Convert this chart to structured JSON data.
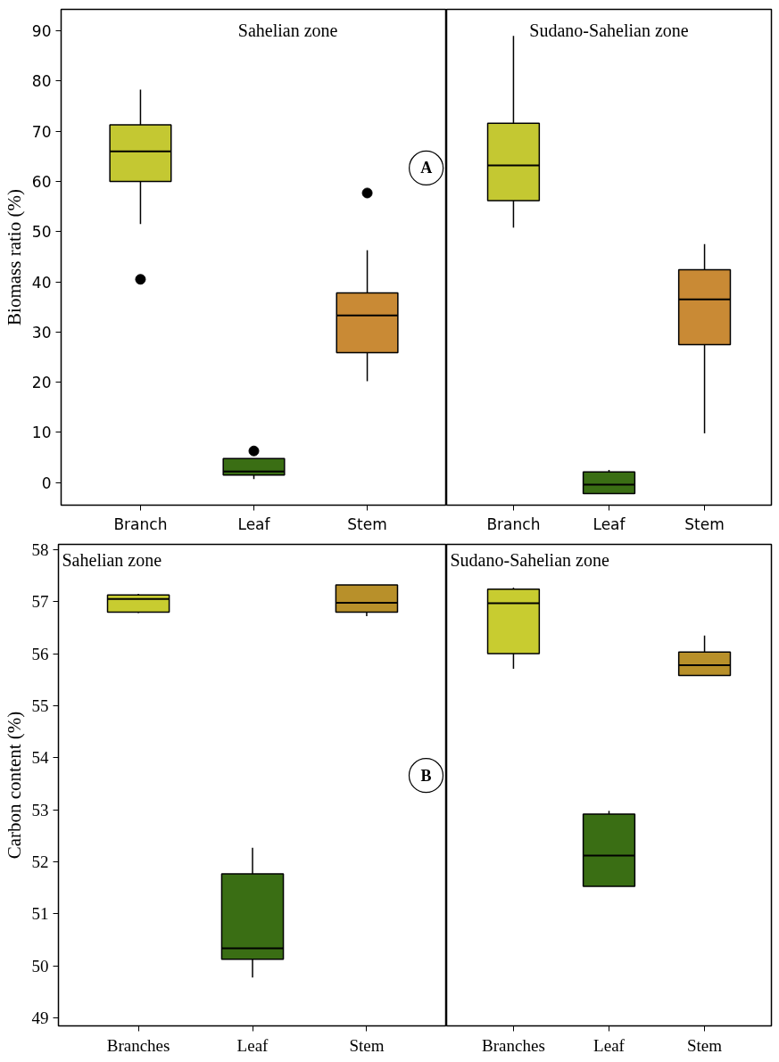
{
  "chart_data": [
    {
      "type": "box",
      "title": "Sahelian zone",
      "ylabel": "Biomass ratio (%)",
      "categories": [
        "Branch",
        "Leaf",
        "Stem"
      ],
      "colors": [
        "#c4c832",
        "#3a6e14",
        "#c98a35"
      ],
      "ylim": [
        -4.5,
        94.3
      ],
      "yticks": [
        0,
        10,
        20,
        30,
        40,
        50,
        60,
        70,
        80,
        90
      ],
      "annotations": [
        "A"
      ],
      "boxes": [
        {
          "low": 51.5,
          "q1": 60,
          "median": 66,
          "q3": 71.3,
          "high": 78.3,
          "outliers": [
            40.5
          ]
        },
        {
          "low": 0.7,
          "q1": 1.5,
          "median": 2.2,
          "q3": 4.8,
          "high": 4.8,
          "outliers": [
            6.3
          ]
        },
        {
          "low": 20.2,
          "q1": 25.9,
          "median": 33.3,
          "q3": 37.8,
          "high": 46.3,
          "outliers": [
            57.7
          ]
        }
      ]
    },
    {
      "type": "box",
      "title": "Sudano-Sahelian zone",
      "categories": [
        "Branch",
        "Leaf",
        "Stem"
      ],
      "colors": [
        "#c4c832",
        "#3a6e14",
        "#c98a35"
      ],
      "ylim": [
        -4.5,
        94.3
      ],
      "yticks": [
        0,
        10,
        20,
        30,
        40,
        50,
        60,
        70,
        80,
        90
      ],
      "tick_labels": "x",
      "boxes": [
        {
          "low": 50.8,
          "q1": 56.2,
          "median": 63.2,
          "q3": 71.6,
          "high": 89
        },
        {
          "low": -2.2,
          "q1": -2.2,
          "median": -0.4,
          "q3": 2.1,
          "high": 2.5
        },
        {
          "low": 9.8,
          "q1": 27.5,
          "median": 36.5,
          "q3": 42.4,
          "high": 47.5
        }
      ]
    },
    {
      "type": "box",
      "title": "Sahelian zone",
      "ylabel": "Carbon content (%)",
      "categories": [
        "Branches",
        "Leaf",
        "Stem"
      ],
      "colors": [
        "#c8cc30",
        "#3a6e14",
        "#b8902a"
      ],
      "ylim": [
        48.85,
        58.1
      ],
      "yticks": [
        49,
        50,
        51,
        52,
        53,
        54,
        55,
        56,
        57,
        58
      ],
      "annotations": [
        "B"
      ],
      "boxes": [
        {
          "low": 56.78,
          "q1": 56.8,
          "median": 57.05,
          "q3": 57.13,
          "high": 57.15
        },
        {
          "low": 49.78,
          "q1": 50.13,
          "median": 50.34,
          "q3": 51.77,
          "high": 52.27
        },
        {
          "low": 56.72,
          "q1": 56.8,
          "median": 56.98,
          "q3": 57.32,
          "high": 57.32
        }
      ]
    },
    {
      "type": "box",
      "title": "Sudano-Sahelian zone",
      "categories": [
        "Branches",
        "Leaf",
        "Stem"
      ],
      "colors": [
        "#c8cc30",
        "#3a6e14",
        "#b8902a"
      ],
      "ylim": [
        48.85,
        58.1
      ],
      "yticks": [
        49,
        50,
        51,
        52,
        53,
        54,
        55,
        56,
        57,
        58
      ],
      "tick_labels": "x",
      "boxes": [
        {
          "low": 55.71,
          "q1": 56.0,
          "median": 56.97,
          "q3": 57.24,
          "high": 57.27
        },
        {
          "low": 51.53,
          "q1": 51.53,
          "median": 52.12,
          "q3": 52.92,
          "high": 52.98
        },
        {
          "low": 55.58,
          "q1": 55.58,
          "median": 55.78,
          "q3": 56.03,
          "high": 56.35
        }
      ]
    }
  ]
}
